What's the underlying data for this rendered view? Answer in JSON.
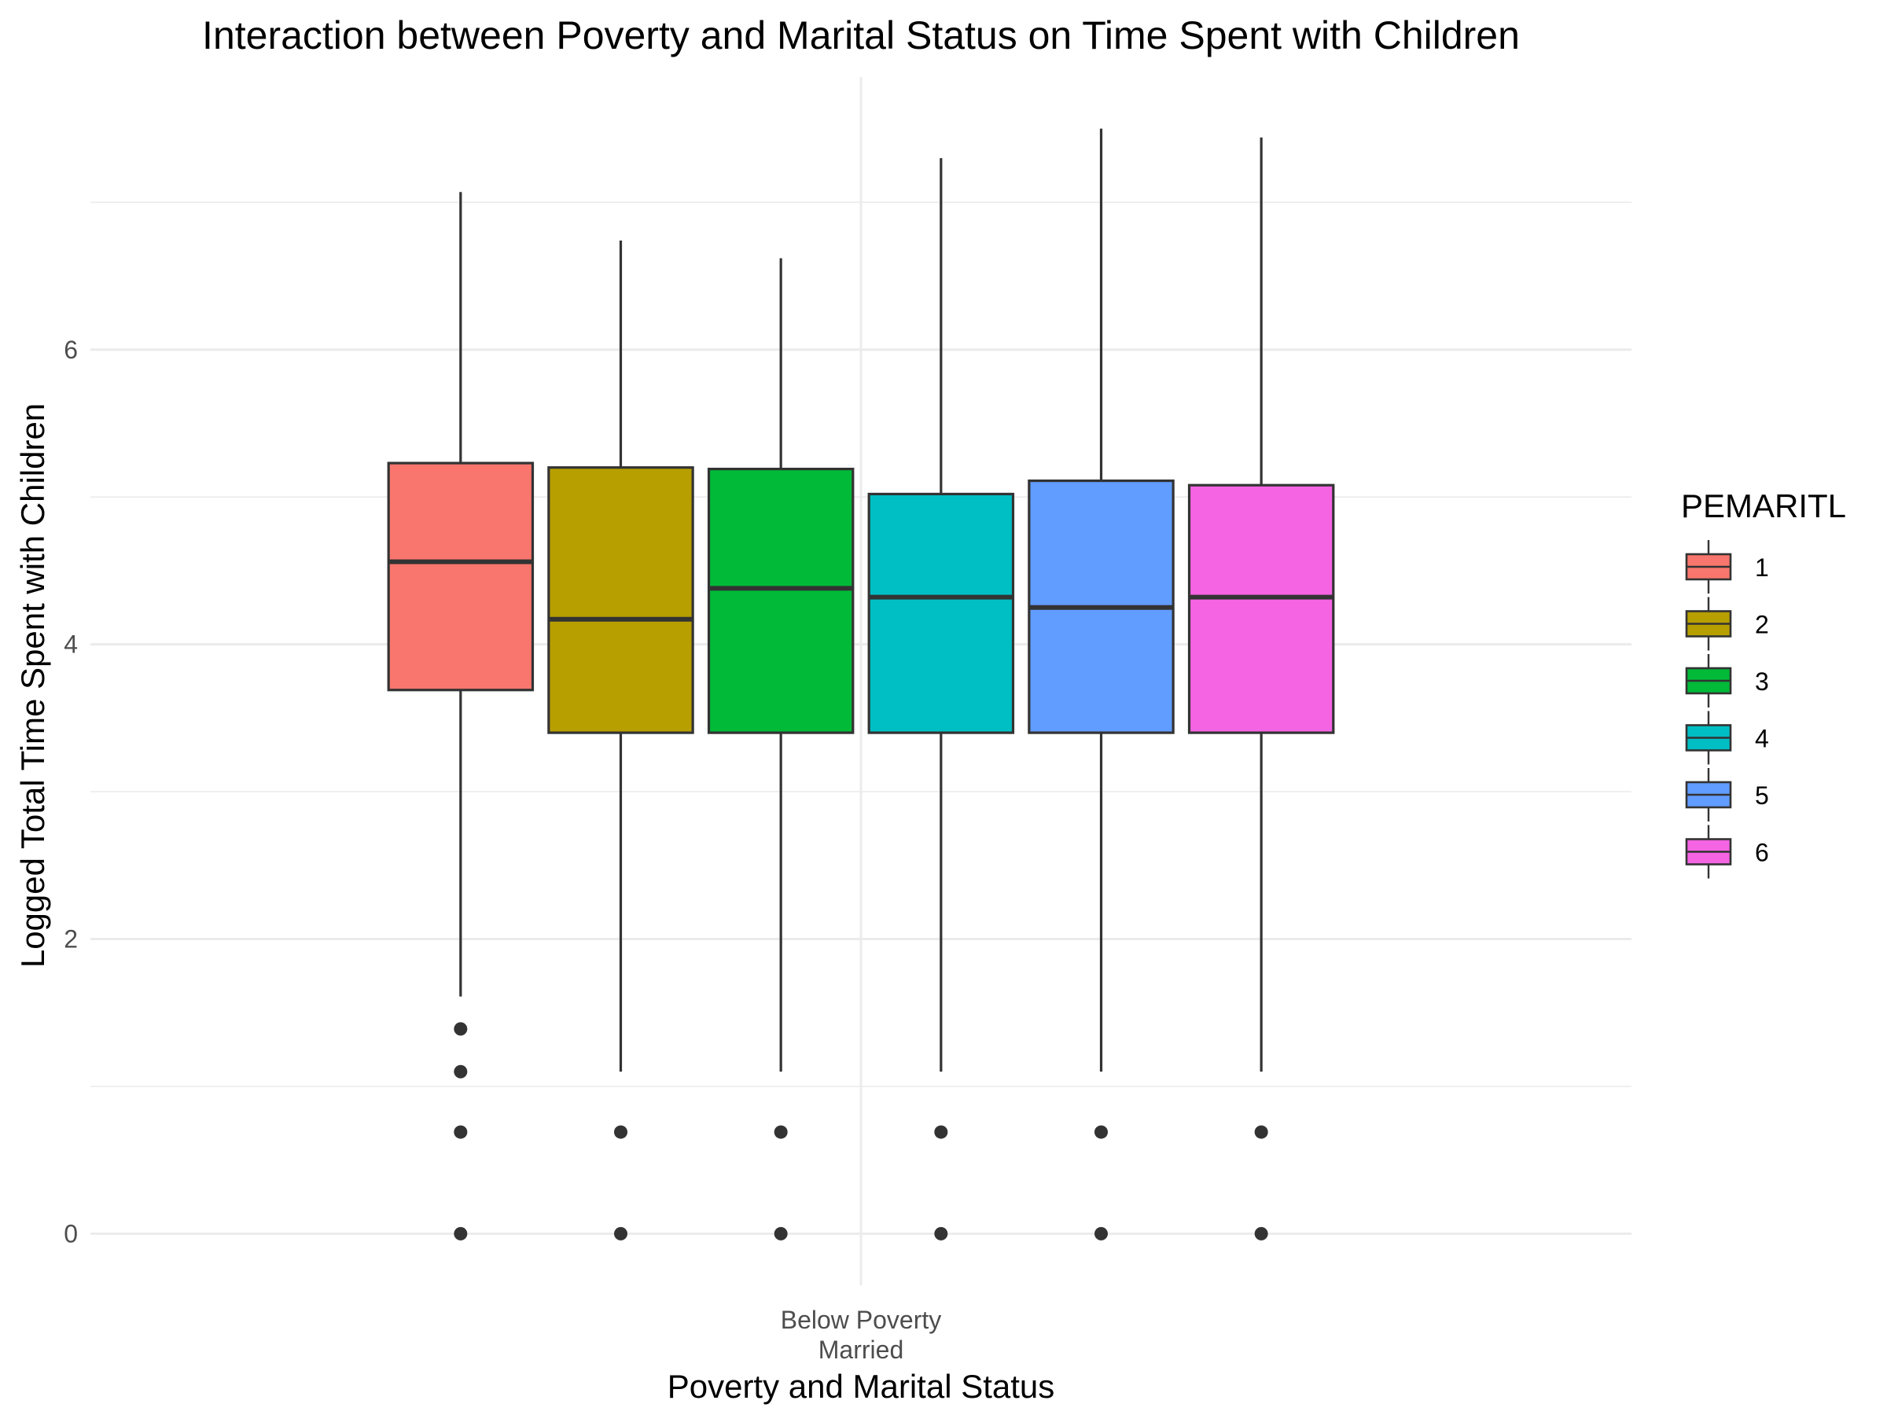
{
  "chart_data": {
    "type": "boxplot",
    "title": "Interaction between Poverty and Marital Status on Time Spent with Children",
    "xlabel": "Poverty and Marital Status",
    "ylabel": "Logged Total Time Spent with Children",
    "categories": [
      "Below Poverty\nMarried"
    ],
    "category_lines": [
      "Below Poverty",
      "Married"
    ],
    "ylim": [
      -0.35,
      7.85
    ],
    "yticks": [
      0,
      2,
      4,
      6
    ],
    "grid": true,
    "legend": {
      "title": "PEMARITL",
      "placement": "right"
    },
    "series": [
      {
        "name": "1",
        "color": "#F8766D",
        "q1": 3.69,
        "median": 4.56,
        "q3": 5.23,
        "whisker_low": 1.61,
        "whisker_high": 7.07,
        "outliers": [
          1.39,
          1.1,
          0.69,
          0.0
        ]
      },
      {
        "name": "2",
        "color": "#B79F00",
        "q1": 3.4,
        "median": 4.17,
        "q3": 5.2,
        "whisker_low": 1.1,
        "whisker_high": 6.74,
        "outliers": [
          0.69,
          0.0
        ]
      },
      {
        "name": "3",
        "color": "#00BA38",
        "q1": 3.4,
        "median": 4.38,
        "q3": 5.19,
        "whisker_low": 1.1,
        "whisker_high": 6.62,
        "outliers": [
          0.69,
          0.0
        ]
      },
      {
        "name": "4",
        "color": "#00BFC4",
        "q1": 3.4,
        "median": 4.32,
        "q3": 5.02,
        "whisker_low": 1.1,
        "whisker_high": 7.3,
        "outliers": [
          0.69,
          0.0
        ]
      },
      {
        "name": "5",
        "color": "#619CFF",
        "q1": 3.4,
        "median": 4.25,
        "q3": 5.11,
        "whisker_low": 1.1,
        "whisker_high": 7.5,
        "outliers": [
          0.69,
          0.0
        ]
      },
      {
        "name": "6",
        "color": "#F564E3",
        "q1": 3.4,
        "median": 4.32,
        "q3": 5.08,
        "whisker_low": 1.1,
        "whisker_high": 7.44,
        "outliers": [
          0.69,
          0.0
        ]
      }
    ]
  }
}
